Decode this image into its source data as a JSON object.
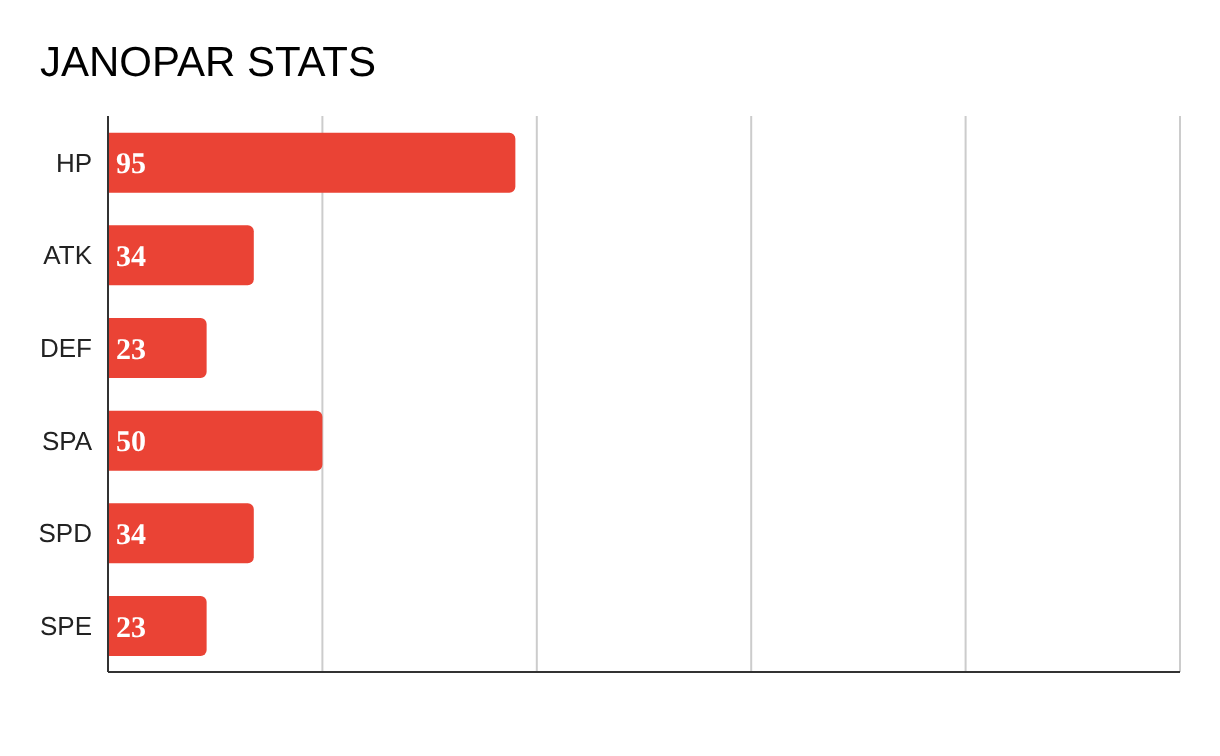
{
  "chart_data": {
    "type": "bar",
    "orientation": "horizontal",
    "title": "JANOPAR STATS",
    "categories": [
      "HP",
      "ATK",
      "DEF",
      "SPA",
      "SPD",
      "SPE"
    ],
    "values": [
      95,
      34,
      23,
      50,
      34,
      23
    ],
    "color": "#ea4335",
    "xlim": [
      0,
      250
    ],
    "xticks": [
      0,
      {
        "value": 50,
        "label": null
      },
      {
        "value": 100,
        "label": null
      },
      {
        "value": 150,
        "label": null
      },
      {
        "value": 200,
        "label": null
      },
      {
        "value": 250,
        "label": null
      }
    ],
    "tick_labels": "y",
    "grid": "x",
    "data_labels": true,
    "legend": false
  }
}
